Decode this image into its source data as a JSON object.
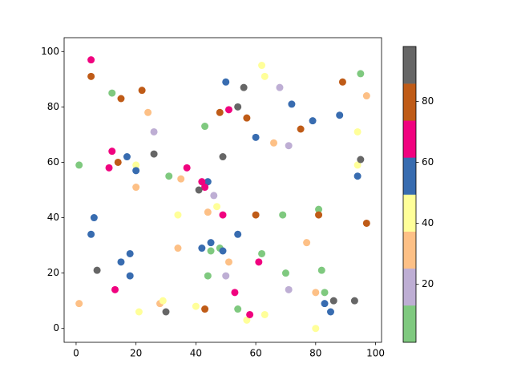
{
  "chart_data": {
    "type": "scatter",
    "x": [
      1,
      12,
      31,
      43,
      45,
      44,
      48,
      54,
      62,
      69,
      70,
      81,
      82,
      83,
      95,
      26,
      46,
      50,
      68,
      71,
      71,
      1,
      20,
      24,
      28,
      34,
      35,
      44,
      51,
      66,
      77,
      80,
      97,
      20,
      21,
      29,
      34,
      40,
      47,
      57,
      62,
      63,
      63,
      80,
      94,
      94,
      5,
      6,
      15,
      17,
      18,
      18,
      20,
      42,
      43,
      45,
      49,
      50,
      54,
      60,
      72,
      79,
      83,
      85,
      88,
      94,
      44,
      5,
      11,
      12,
      13,
      37,
      42,
      43,
      49,
      51,
      53,
      58,
      61,
      5,
      14,
      15,
      22,
      43,
      48,
      57,
      60,
      75,
      81,
      89,
      97,
      7,
      26,
      30,
      41,
      49,
      54,
      56,
      86,
      93,
      95
    ],
    "y": [
      59,
      85,
      55,
      73,
      28,
      19,
      29,
      7,
      27,
      41,
      20,
      43,
      21,
      13,
      92,
      71,
      48,
      19,
      87,
      66,
      14,
      9,
      51,
      78,
      9,
      29,
      54,
      42,
      24,
      67,
      31,
      13,
      84,
      59,
      6,
      10,
      41,
      8,
      44,
      3,
      95,
      91,
      5,
      0,
      71,
      59,
      34,
      40,
      24,
      62,
      27,
      19,
      57,
      29,
      52,
      31,
      28,
      89,
      34,
      69,
      81,
      75,
      9,
      6,
      77,
      55,
      53,
      97,
      58,
      64,
      14,
      58,
      53,
      51,
      41,
      79,
      13,
      5,
      24,
      91,
      60,
      83,
      86,
      7,
      78,
      76,
      41,
      72,
      41,
      89,
      38,
      21,
      63,
      6,
      50,
      62,
      80,
      87,
      10,
      10,
      61
    ],
    "c": [
      7,
      7,
      7,
      7,
      7,
      7,
      7,
      7,
      7,
      7,
      7,
      7,
      7,
      7,
      7,
      19,
      19,
      19,
      19,
      19,
      19,
      31,
      31,
      31,
      31,
      31,
      31,
      31,
      31,
      31,
      31,
      31,
      31,
      43,
      43,
      43,
      43,
      43,
      43,
      43,
      43,
      43,
      43,
      43,
      43,
      43,
      55,
      55,
      55,
      55,
      55,
      55,
      55,
      55,
      55,
      55,
      55,
      55,
      55,
      55,
      55,
      55,
      55,
      55,
      55,
      55,
      55,
      68,
      68,
      68,
      68,
      68,
      68,
      68,
      68,
      68,
      68,
      68,
      68,
      80,
      80,
      80,
      80,
      80,
      80,
      80,
      80,
      80,
      80,
      80,
      80,
      92,
      92,
      92,
      92,
      92,
      92,
      92,
      92,
      92,
      92
    ],
    "colormap": [
      "#7fc97f",
      "#beaed4",
      "#fdc086",
      "#ffff99",
      "#386cb0",
      "#f0027f",
      "#bf5b17",
      "#666666"
    ],
    "clim": [
      1,
      98
    ],
    "cticks": [
      20,
      40,
      60,
      80
    ],
    "xlim": [
      -4,
      102
    ],
    "ylim": [
      -5,
      105
    ],
    "xticks": [
      0,
      20,
      40,
      60,
      80,
      100
    ],
    "yticks": [
      0,
      20,
      40,
      60,
      80,
      100
    ]
  }
}
